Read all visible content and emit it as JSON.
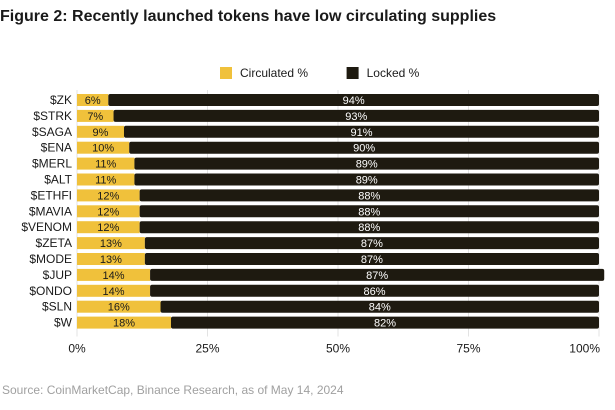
{
  "chart_data": {
    "type": "bar",
    "orientation": "horizontal",
    "stacked": true,
    "title": "Figure 2: Recently launched tokens have low circulating supplies",
    "categories": [
      "$ZK",
      "$STRK",
      "$SAGA",
      "$ENA",
      "$MERL",
      "$ALT",
      "$ETHFI",
      "$MAVIA",
      "$VENOM",
      "$ZETA",
      "$MODE",
      "$JUP",
      "$ONDO",
      "$SLN",
      "$W"
    ],
    "series": [
      {
        "name": "Circulated %",
        "color": "#f0c13b",
        "label_color": "#1a1a1a",
        "values": [
          6,
          7,
          9,
          10,
          11,
          11,
          12,
          12,
          12,
          13,
          13,
          14,
          14,
          16,
          18
        ]
      },
      {
        "name": "Locked %",
        "color": "#1e1a10",
        "label_color": "#ffffff",
        "values": [
          94,
          93,
          91,
          90,
          89,
          89,
          88,
          88,
          88,
          87,
          87,
          87,
          86,
          84,
          82
        ]
      }
    ],
    "xlim": [
      0,
      100
    ],
    "xticks": [
      "0%",
      "25%",
      "50%",
      "75%",
      "100%"
    ],
    "grid": true,
    "legend": "top-center",
    "source": "Source: CoinMarketCap, Binance Research, as of May 14, 2024"
  }
}
